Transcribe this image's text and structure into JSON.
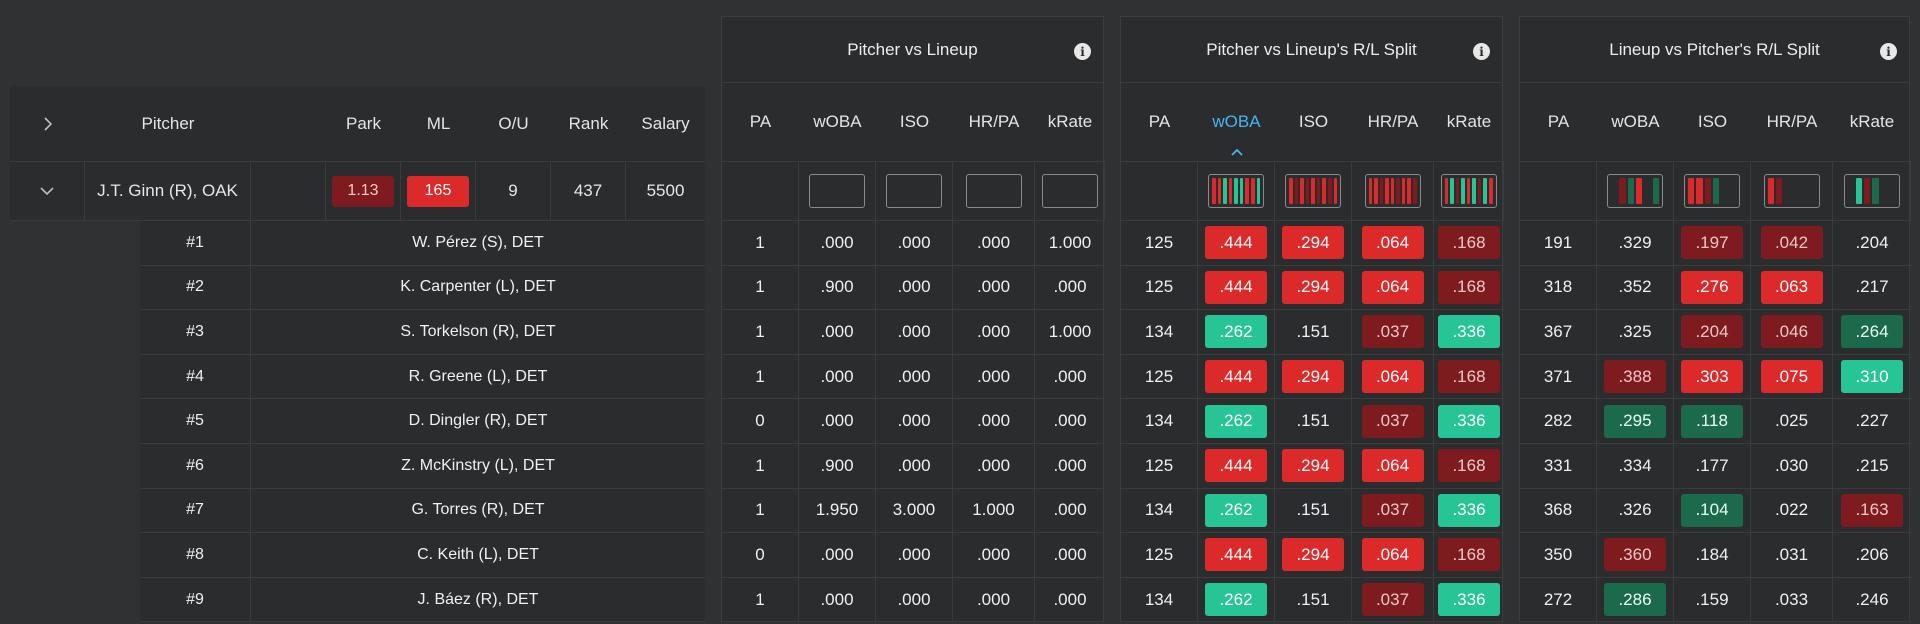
{
  "colors": {
    "bg": "#303133",
    "panel": "#2b2c2e",
    "red_strong": "#dc2a2a",
    "red_dark": "#7d1b1f",
    "green_strong": "#27c596",
    "green_dark": "#1c6a4c",
    "active_header": "#46b5f0"
  },
  "pitcher_table": {
    "headers": [
      "Pitcher",
      "Park",
      "ML",
      "O/U",
      "Rank",
      "Salary"
    ],
    "row": {
      "name": "J.T. Ginn (R), OAK",
      "park": "1.13",
      "ml": "165",
      "ou": "9",
      "rank": "437",
      "salary": "5500"
    },
    "expand_icon": "chevron-right-icon",
    "collapse_icon": "chevron-down-icon"
  },
  "lineup": [
    {
      "order": "#1",
      "name": "W. Pérez (S), DET"
    },
    {
      "order": "#2",
      "name": "K. Carpenter (L), DET"
    },
    {
      "order": "#3",
      "name": "S. Torkelson (R), DET"
    },
    {
      "order": "#4",
      "name": "R. Greene (L), DET"
    },
    {
      "order": "#5",
      "name": "D. Dingler (R), DET"
    },
    {
      "order": "#6",
      "name": "Z. McKinstry (L), DET"
    },
    {
      "order": "#7",
      "name": "G. Torres (R), DET"
    },
    {
      "order": "#8",
      "name": "C. Keith (L), DET"
    },
    {
      "order": "#9",
      "name": "J. Báez (R), DET"
    }
  ],
  "panels": [
    {
      "title": "Pitcher vs Lineup",
      "columns": [
        "PA",
        "wOBA",
        "ISO",
        "HR/PA",
        "kRate"
      ],
      "active_column": -1,
      "filters": [
        "",
        "box",
        "box",
        "box",
        "box"
      ],
      "rows": [
        [
          [
            "1",
            ""
          ],
          [
            ".000",
            ""
          ],
          [
            ".000",
            ""
          ],
          [
            ".000",
            ""
          ],
          [
            "1.000",
            ""
          ]
        ],
        [
          [
            "1",
            ""
          ],
          [
            ".900",
            ""
          ],
          [
            ".000",
            ""
          ],
          [
            ".000",
            ""
          ],
          [
            ".000",
            ""
          ]
        ],
        [
          [
            "1",
            ""
          ],
          [
            ".000",
            ""
          ],
          [
            ".000",
            ""
          ],
          [
            ".000",
            ""
          ],
          [
            "1.000",
            ""
          ]
        ],
        [
          [
            "1",
            ""
          ],
          [
            ".000",
            ""
          ],
          [
            ".000",
            ""
          ],
          [
            ".000",
            ""
          ],
          [
            ".000",
            ""
          ]
        ],
        [
          [
            "0",
            ""
          ],
          [
            ".000",
            ""
          ],
          [
            ".000",
            ""
          ],
          [
            ".000",
            ""
          ],
          [
            ".000",
            ""
          ]
        ],
        [
          [
            "1",
            ""
          ],
          [
            ".900",
            ""
          ],
          [
            ".000",
            ""
          ],
          [
            ".000",
            ""
          ],
          [
            ".000",
            ""
          ]
        ],
        [
          [
            "1",
            ""
          ],
          [
            "1.950",
            ""
          ],
          [
            "3.000",
            ""
          ],
          [
            "1.000",
            ""
          ],
          [
            ".000",
            ""
          ]
        ],
        [
          [
            "0",
            ""
          ],
          [
            ".000",
            ""
          ],
          [
            ".000",
            ""
          ],
          [
            ".000",
            ""
          ],
          [
            ".000",
            ""
          ]
        ],
        [
          [
            "1",
            ""
          ],
          [
            ".000",
            ""
          ],
          [
            ".000",
            ""
          ],
          [
            ".000",
            ""
          ],
          [
            ".000",
            ""
          ]
        ]
      ]
    },
    {
      "title": "Pitcher vs Lineup's R/L Split",
      "columns": [
        "PA",
        "wOBA",
        "ISO",
        "HR/PA",
        "kRate"
      ],
      "active_column": 1,
      "filters": [
        "",
        "mini",
        "mini",
        "mini",
        "mini"
      ],
      "minis": [
        [],
        [
          "r1",
          "r1",
          "g1",
          "r1",
          "g1",
          "g1",
          "r1",
          "r1",
          "g1"
        ],
        [
          "r1",
          "r2",
          "r1",
          "r2",
          "r1",
          "r2",
          "r1",
          "r2",
          "r1"
        ],
        [
          "r1",
          "r1",
          "r2",
          "r1",
          "r1",
          "r2",
          "r1",
          "r1",
          "r2"
        ],
        [
          "r1",
          "g1",
          "r2",
          "g1",
          "r1",
          "g1",
          "r2",
          "g1",
          "r1"
        ]
      ],
      "rows": [
        [
          [
            "125",
            ""
          ],
          [
            ".444",
            "r1"
          ],
          [
            ".294",
            "r1"
          ],
          [
            ".064",
            "r1"
          ],
          [
            ".168",
            "r2"
          ]
        ],
        [
          [
            "125",
            ""
          ],
          [
            ".444",
            "r1"
          ],
          [
            ".294",
            "r1"
          ],
          [
            ".064",
            "r1"
          ],
          [
            ".168",
            "r2"
          ]
        ],
        [
          [
            "134",
            ""
          ],
          [
            ".262",
            "g1"
          ],
          [
            ".151",
            ""
          ],
          [
            ".037",
            "r2"
          ],
          [
            ".336",
            "g1"
          ]
        ],
        [
          [
            "125",
            ""
          ],
          [
            ".444",
            "r1"
          ],
          [
            ".294",
            "r1"
          ],
          [
            ".064",
            "r1"
          ],
          [
            ".168",
            "r2"
          ]
        ],
        [
          [
            "134",
            ""
          ],
          [
            ".262",
            "g1"
          ],
          [
            ".151",
            ""
          ],
          [
            ".037",
            "r2"
          ],
          [
            ".336",
            "g1"
          ]
        ],
        [
          [
            "125",
            ""
          ],
          [
            ".444",
            "r1"
          ],
          [
            ".294",
            "r1"
          ],
          [
            ".064",
            "r1"
          ],
          [
            ".168",
            "r2"
          ]
        ],
        [
          [
            "134",
            ""
          ],
          [
            ".262",
            "g1"
          ],
          [
            ".151",
            ""
          ],
          [
            ".037",
            "r2"
          ],
          [
            ".336",
            "g1"
          ]
        ],
        [
          [
            "125",
            ""
          ],
          [
            ".444",
            "r1"
          ],
          [
            ".294",
            "r1"
          ],
          [
            ".064",
            "r1"
          ],
          [
            ".168",
            "r2"
          ]
        ],
        [
          [
            "134",
            ""
          ],
          [
            ".262",
            "g1"
          ],
          [
            ".151",
            ""
          ],
          [
            ".037",
            "r2"
          ],
          [
            ".336",
            "g1"
          ]
        ]
      ]
    },
    {
      "title": "Lineup vs Pitcher's R/L Split",
      "columns": [
        "PA",
        "wOBA",
        "ISO",
        "HR/PA",
        "kRate"
      ],
      "active_column": -1,
      "filters": [
        "",
        "mini",
        "mini",
        "mini",
        "mini"
      ],
      "minis": [
        [],
        [
          "n",
          "r2",
          "g2",
          "r1",
          "n",
          "g2"
        ],
        [
          "r1",
          "r1",
          "r2",
          "g2",
          "n",
          "n"
        ],
        [
          "r1",
          "r2",
          "n",
          "n",
          "n",
          "n"
        ],
        [
          "n",
          "g1",
          "r2",
          "g2",
          "n",
          "n"
        ]
      ],
      "rows": [
        [
          [
            "191",
            ""
          ],
          [
            ".329",
            ""
          ],
          [
            ".197",
            "r2"
          ],
          [
            ".042",
            "r2"
          ],
          [
            ".204",
            ""
          ]
        ],
        [
          [
            "318",
            ""
          ],
          [
            ".352",
            ""
          ],
          [
            ".276",
            "r1"
          ],
          [
            ".063",
            "r1"
          ],
          [
            ".217",
            ""
          ]
        ],
        [
          [
            "367",
            ""
          ],
          [
            ".325",
            ""
          ],
          [
            ".204",
            "r2"
          ],
          [
            ".046",
            "r2"
          ],
          [
            ".264",
            "g2"
          ]
        ],
        [
          [
            "371",
            ""
          ],
          [
            ".388",
            "r2"
          ],
          [
            ".303",
            "r1"
          ],
          [
            ".075",
            "r1"
          ],
          [
            ".310",
            "g1"
          ]
        ],
        [
          [
            "282",
            ""
          ],
          [
            ".295",
            "g2"
          ],
          [
            ".118",
            "g2"
          ],
          [
            ".025",
            ""
          ],
          [
            ".227",
            ""
          ]
        ],
        [
          [
            "331",
            ""
          ],
          [
            ".334",
            ""
          ],
          [
            ".177",
            ""
          ],
          [
            ".030",
            ""
          ],
          [
            ".215",
            ""
          ]
        ],
        [
          [
            "368",
            ""
          ],
          [
            ".326",
            ""
          ],
          [
            ".104",
            "g2"
          ],
          [
            ".022",
            ""
          ],
          [
            ".163",
            "r2"
          ]
        ],
        [
          [
            "350",
            ""
          ],
          [
            ".360",
            "r2"
          ],
          [
            ".184",
            ""
          ],
          [
            ".031",
            ""
          ],
          [
            ".206",
            ""
          ]
        ],
        [
          [
            "272",
            ""
          ],
          [
            ".286",
            "g2"
          ],
          [
            ".159",
            ""
          ],
          [
            ".033",
            ""
          ],
          [
            ".246",
            ""
          ]
        ]
      ]
    }
  ],
  "info_icon": "info-icon"
}
